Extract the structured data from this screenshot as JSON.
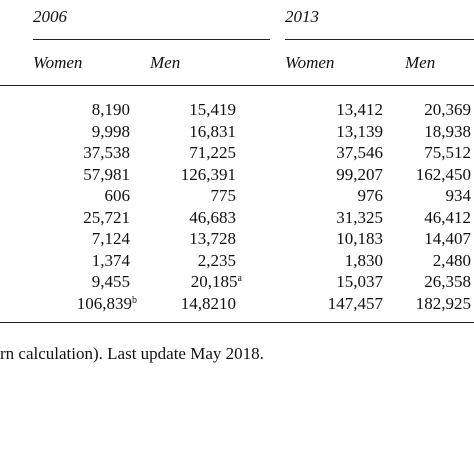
{
  "table": {
    "groups": [
      "2006",
      "2013"
    ],
    "headers": [
      "Women",
      "Men",
      "Women",
      "Men"
    ],
    "rows": [
      [
        "8,190",
        "15,419",
        "13,412",
        "20,369"
      ],
      [
        "9,998",
        "16,831",
        "13,139",
        "18,938"
      ],
      [
        "37,538",
        "71,225",
        "37,546",
        "75,512"
      ],
      [
        "57,981",
        "126,391",
        "99,207",
        "162,450"
      ],
      [
        "606",
        "775",
        "976",
        "934"
      ],
      [
        "25,721",
        "46,683",
        "31,325",
        "46,412"
      ],
      [
        "7,124",
        "13,728",
        "10,183",
        "14,407"
      ],
      [
        "1,374",
        "2,235",
        "1,830",
        "2,480"
      ],
      [
        "9,455",
        {
          "text": "20,185",
          "sup": "a"
        },
        "15,037",
        "26,358"
      ],
      [
        {
          "text": "106,839",
          "sup": "b"
        },
        "14,8210",
        "147,457",
        "182,925"
      ]
    ],
    "footnote": "rn calculation). Last update May 2018."
  }
}
